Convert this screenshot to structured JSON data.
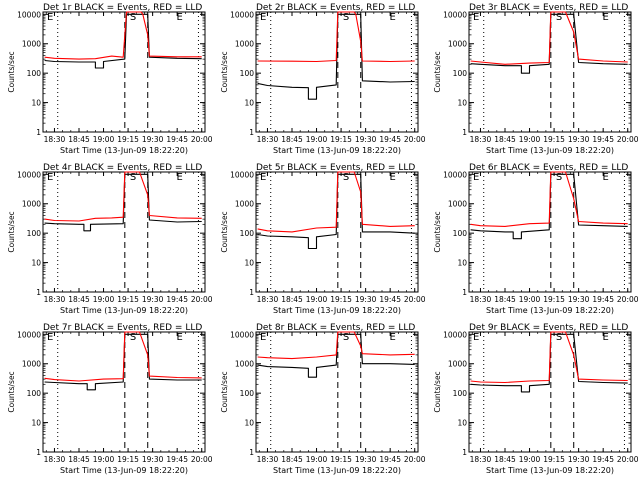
{
  "chart_data": {
    "type": "line",
    "layout": "3x3 grid",
    "xlabel": "Start Time (13-Jun-09 18:22:20)",
    "ylabel": "Counts/sec",
    "yscale": "log",
    "ylim": [
      1,
      12000
    ],
    "ytick_labels": [
      "1",
      "10",
      "100",
      "1000",
      "10000"
    ],
    "xlim": [
      "18:23",
      "20:02"
    ],
    "xtick_labels": [
      "18:30",
      "18:45",
      "19:00",
      "19:15",
      "19:30",
      "19:45",
      "20:00"
    ],
    "legend": "BLACK = Events, RED = LLD",
    "dotted_lines_at": [
      "18:32",
      "19:58"
    ],
    "dashed_lines_at": [
      "19:13",
      "19:27"
    ],
    "markers": [
      "E",
      "S",
      "E"
    ],
    "panels": [
      {
        "title": "Det 1r  BLACK = Events, RED = LLD",
        "series": [
          {
            "name": "Events",
            "color": "#000000",
            "x": [
              "18:24",
              "18:30",
              "18:45",
              "18:55",
              "18:55",
              "19:00",
              "19:00",
              "19:13",
              "19:14",
              "19:27",
              "19:28",
              "19:45",
              "20:00"
            ],
            "y": [
              270,
              250,
              240,
              240,
              150,
              150,
              250,
              300,
              10000,
              10000,
              350,
              320,
              310
            ]
          },
          {
            "name": "LLD",
            "color": "#ff0000",
            "x": [
              "18:24",
              "18:30",
              "18:45",
              "18:55",
              "19:05",
              "19:12",
              "19:14",
              "19:23",
              "19:24",
              "19:27",
              "19:28",
              "19:45",
              "20:00"
            ],
            "y": [
              350,
              320,
              300,
              310,
              380,
              350,
              12000,
              12000,
              10000,
              2000,
              380,
              360,
              360
            ]
          }
        ]
      },
      {
        "title": "Det 2r  BLACK = Events, RED = LLD",
        "series": [
          {
            "name": "Events",
            "color": "#000000",
            "x": [
              "18:24",
              "18:30",
              "18:45",
              "18:55",
              "18:55",
              "19:00",
              "19:00",
              "19:12",
              "19:13",
              "19:27",
              "19:28",
              "19:45",
              "20:00"
            ],
            "y": [
              45,
              38,
              33,
              32,
              13,
              13,
              33,
              40,
              10000,
              10000,
              55,
              50,
              52
            ]
          },
          {
            "name": "LLD",
            "color": "#ff0000",
            "x": [
              "18:24",
              "18:45",
              "19:00",
              "19:12",
              "19:13",
              "19:23",
              "19:24",
              "19:27",
              "19:28",
              "19:45",
              "20:00"
            ],
            "y": [
              260,
              255,
              250,
              270,
              12000,
              12000,
              10000,
              1200,
              260,
              250,
              260
            ]
          }
        ]
      },
      {
        "title": "Det 3r  BLACK = Events, RED = LLD",
        "series": [
          {
            "name": "Events",
            "color": "#000000",
            "x": [
              "18:24",
              "18:30",
              "18:45",
              "18:55",
              "18:55",
              "19:00",
              "19:00",
              "19:12",
              "19:13",
              "19:27",
              "19:30",
              "19:45",
              "20:00"
            ],
            "y": [
              210,
              200,
              180,
              180,
              100,
              100,
              180,
              200,
              10000,
              10000,
              230,
              210,
              200
            ]
          },
          {
            "name": "LLD",
            "color": "#ff0000",
            "x": [
              "18:24",
              "18:30",
              "18:45",
              "19:00",
              "19:12",
              "19:13",
              "19:22",
              "19:27",
              "19:30",
              "19:45",
              "20:00"
            ],
            "y": [
              260,
              240,
              200,
              220,
              230,
              12000,
              12000,
              2500,
              300,
              260,
              240
            ]
          }
        ]
      },
      {
        "title": "Det 4r  BLACK = Events, RED = LLD",
        "series": [
          {
            "name": "Events",
            "color": "#000000",
            "x": [
              "18:24",
              "18:30",
              "18:45",
              "18:48",
              "18:48",
              "18:52",
              "18:52",
              "19:12",
              "19:13",
              "19:27",
              "19:28",
              "19:45",
              "20:00"
            ],
            "y": [
              220,
              210,
              200,
              200,
              120,
              120,
              200,
              210,
              10000,
              10000,
              280,
              240,
              250
            ]
          },
          {
            "name": "LLD",
            "color": "#ff0000",
            "x": [
              "18:24",
              "18:30",
              "18:45",
              "18:55",
              "19:05",
              "19:12",
              "19:13",
              "19:22",
              "19:27",
              "19:28",
              "19:45",
              "20:00"
            ],
            "y": [
              300,
              270,
              260,
              320,
              330,
              350,
              12000,
              12000,
              2000,
              400,
              330,
              320
            ]
          }
        ]
      },
      {
        "title": "Det 5r  BLACK = Events, RED = LLD",
        "series": [
          {
            "name": "Events",
            "color": "#000000",
            "x": [
              "18:24",
              "18:30",
              "18:45",
              "18:55",
              "18:55",
              "19:00",
              "19:00",
              "19:12",
              "19:13",
              "19:27",
              "19:28",
              "19:45",
              "20:00"
            ],
            "y": [
              90,
              80,
              75,
              70,
              30,
              30,
              75,
              90,
              10000,
              10000,
              110,
              110,
              100
            ]
          },
          {
            "name": "LLD",
            "color": "#ff0000",
            "x": [
              "18:24",
              "18:30",
              "18:45",
              "19:00",
              "19:12",
              "19:13",
              "19:23",
              "19:27",
              "19:28",
              "19:45",
              "20:00"
            ],
            "y": [
              140,
              120,
              110,
              150,
              160,
              12000,
              12000,
              2500,
              200,
              170,
              180
            ]
          }
        ]
      },
      {
        "title": "Det 6r  BLACK = Events, RED = LLD",
        "series": [
          {
            "name": "Events",
            "color": "#000000",
            "x": [
              "18:24",
              "18:30",
              "18:45",
              "18:50",
              "18:50",
              "18:55",
              "18:55",
              "19:12",
              "19:13",
              "19:27",
              "19:30",
              "19:45",
              "20:00"
            ],
            "y": [
              130,
              120,
              110,
              110,
              65,
              65,
              110,
              130,
              10000,
              10000,
              190,
              180,
              170
            ]
          },
          {
            "name": "LLD",
            "color": "#ff0000",
            "x": [
              "18:24",
              "18:30",
              "18:45",
              "19:00",
              "19:12",
              "19:13",
              "19:22",
              "19:27",
              "19:30",
              "19:45",
              "20:00"
            ],
            "y": [
              200,
              180,
              170,
              210,
              220,
              12000,
              12000,
              1500,
              250,
              220,
              210
            ]
          }
        ]
      },
      {
        "title": "Det 7r  BLACK = Events, RED = LLD",
        "series": [
          {
            "name": "Events",
            "color": "#000000",
            "x": [
              "18:24",
              "18:30",
              "18:45",
              "18:50",
              "18:50",
              "18:55",
              "18:55",
              "19:12",
              "19:13",
              "19:27",
              "19:28",
              "19:45",
              "20:00"
            ],
            "y": [
              240,
              230,
              210,
              210,
              130,
              130,
              210,
              240,
              10000,
              10000,
              300,
              280,
              280
            ]
          },
          {
            "name": "LLD",
            "color": "#ff0000",
            "x": [
              "18:24",
              "18:30",
              "18:45",
              "19:00",
              "19:12",
              "19:13",
              "19:22",
              "19:27",
              "19:28",
              "19:45",
              "20:00"
            ],
            "y": [
              320,
              290,
              260,
              300,
              310,
              12000,
              12000,
              2000,
              380,
              340,
              330
            ]
          }
        ]
      },
      {
        "title": "Det 8r  BLACK = Events, RED = LLD",
        "series": [
          {
            "name": "Events",
            "color": "#000000",
            "x": [
              "18:24",
              "18:30",
              "18:45",
              "18:55",
              "18:55",
              "19:00",
              "19:00",
              "19:12",
              "19:13",
              "19:27",
              "19:28",
              "19:45",
              "20:00"
            ],
            "y": [
              900,
              800,
              750,
              700,
              350,
              350,
              750,
              900,
              10000,
              10000,
              1000,
              1000,
              950
            ]
          },
          {
            "name": "LLD",
            "color": "#ff0000",
            "x": [
              "18:24",
              "18:30",
              "18:45",
              "19:00",
              "19:12",
              "19:13",
              "19:23",
              "19:27",
              "19:28",
              "19:45",
              "20:00"
            ],
            "y": [
              1700,
              1600,
              1500,
              1700,
              2000,
              12000,
              12000,
              4000,
              2200,
              2000,
              2100
            ]
          }
        ]
      },
      {
        "title": "Det 9r  BLACK = Events, RED = LLD",
        "series": [
          {
            "name": "Events",
            "color": "#000000",
            "x": [
              "18:24",
              "18:30",
              "18:45",
              "18:55",
              "18:55",
              "19:00",
              "19:00",
              "19:12",
              "19:13",
              "19:27",
              "19:30",
              "19:45",
              "20:00"
            ],
            "y": [
              200,
              190,
              180,
              180,
              110,
              110,
              180,
              200,
              10000,
              10000,
              250,
              230,
              220
            ]
          },
          {
            "name": "LLD",
            "color": "#ff0000",
            "x": [
              "18:24",
              "18:30",
              "18:45",
              "19:00",
              "19:12",
              "19:13",
              "19:22",
              "19:27",
              "19:30",
              "19:45",
              "20:00"
            ],
            "y": [
              260,
              240,
              230,
              260,
              270,
              12000,
              12000,
              2000,
              300,
              280,
              270
            ]
          }
        ]
      }
    ]
  }
}
